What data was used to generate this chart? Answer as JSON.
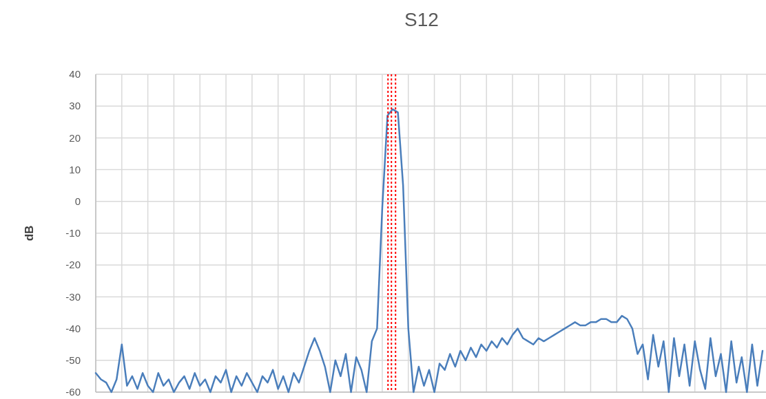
{
  "chart_data": {
    "type": "line",
    "title": "S12",
    "ylabel": "dB",
    "ylim": [
      -60,
      40
    ],
    "yticks": [
      -60,
      -50,
      -40,
      -30,
      -20,
      -10,
      0,
      10,
      20,
      30,
      40
    ],
    "categories": [
      null,
      null,
      null,
      null,
      null,
      null,
      null,
      null,
      null,
      null,
      null,
      null,
      null,
      null,
      null,
      null,
      null,
      null,
      null,
      null,
      null,
      null,
      null,
      null,
      null,
      null,
      null,
      null,
      null,
      null,
      null,
      null,
      null,
      null,
      null,
      null,
      null,
      null,
      null,
      null,
      null,
      null,
      null,
      null,
      null,
      null,
      null,
      null,
      null,
      null,
      null,
      null,
      null,
      null,
      null,
      null,
      null,
      null,
      null,
      null,
      null,
      null,
      null,
      null,
      null,
      null,
      null,
      null,
      null,
      null,
      null,
      null,
      null,
      null,
      null,
      null,
      null,
      null,
      null,
      null,
      null,
      null,
      null,
      null,
      null,
      null,
      null,
      null,
      null,
      null,
      null,
      null,
      null,
      null,
      null,
      null,
      null,
      null,
      null,
      null,
      null,
      null,
      null,
      null,
      null,
      null,
      null,
      null,
      null,
      null,
      null,
      null,
      null,
      null,
      null,
      null,
      null,
      null,
      null,
      null,
      null,
      null,
      null,
      null,
      null,
      null,
      null,
      null,
      null
    ],
    "grid": true,
    "line_style": "solid",
    "series": [
      {
        "color": "#4a7ebb",
        "values": [
          -54,
          -56,
          -57,
          -60,
          -56,
          -45,
          -58,
          -55,
          -59,
          -54,
          -58,
          -60,
          -54,
          -58,
          -56,
          -60,
          -57,
          -55,
          -59,
          -54,
          -58,
          -56,
          -60,
          -55,
          -57,
          -53,
          -60,
          -55,
          -58,
          -54,
          -57,
          -60,
          -55,
          -57,
          -53,
          -59,
          -55,
          -60,
          -54,
          -57,
          -52,
          -47,
          -43,
          -47,
          -52,
          -60,
          -50,
          -55,
          -48,
          -60,
          -49,
          -53,
          -60,
          -44,
          -40,
          -2,
          27,
          29,
          28,
          5,
          -40,
          -60,
          -52,
          -58,
          -53,
          -60,
          -51,
          -53,
          -48,
          -52,
          -47,
          -50,
          -46,
          -49,
          -45,
          -47,
          -44,
          -46,
          -43,
          -45,
          -42,
          -40,
          -43,
          -44,
          -45,
          -43,
          -44,
          -43,
          -42,
          -41,
          -40,
          -39,
          -38,
          -39,
          -39,
          -38,
          -38,
          -37,
          -37,
          -38,
          -38,
          -36,
          -37,
          -40,
          -48,
          -45,
          -56,
          -42,
          -52,
          -44,
          -60,
          -43,
          -55,
          -45,
          -58,
          -44,
          -53,
          -59,
          -43,
          -55,
          -48,
          -60,
          -44,
          -57,
          -49,
          -60,
          -45,
          -58,
          -47
        ]
      }
    ]
  }
}
